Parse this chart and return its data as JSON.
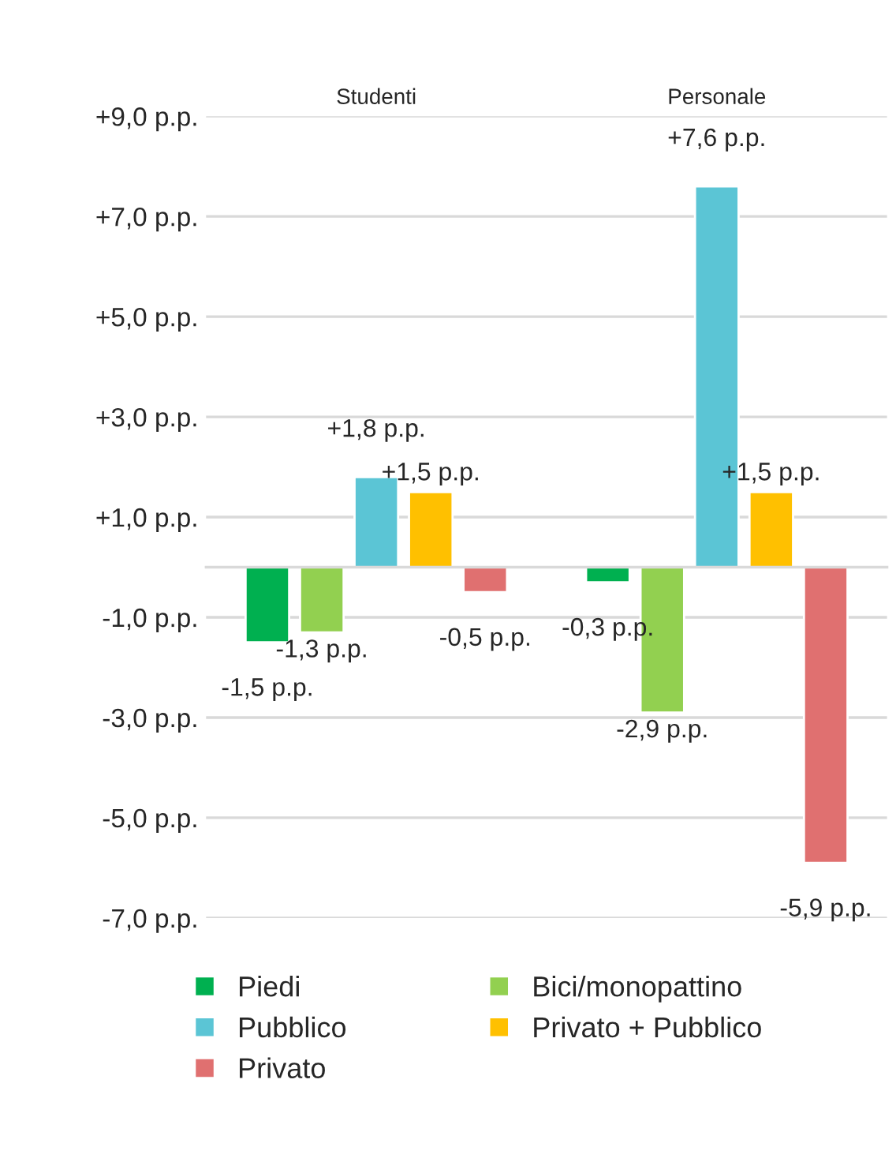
{
  "chart_data": {
    "type": "bar",
    "categories": [
      "Studenti",
      "Personale"
    ],
    "series": [
      {
        "name": "Piedi",
        "color": "#00b050",
        "values": [
          -1.5,
          -0.3
        ],
        "value_labels": [
          "-1,5 p.p.",
          "-0,3 p.p."
        ]
      },
      {
        "name": "Bici/monopattino",
        "color": "#92d050",
        "values": [
          -1.3,
          -2.9
        ],
        "value_labels": [
          "-1,3 p.p.",
          "-2,9 p.p."
        ]
      },
      {
        "name": "Pubblico",
        "color": "#5bc5d5",
        "values": [
          1.8,
          7.6
        ],
        "value_labels": [
          "+1,8 p.p.",
          "+7,6 p.p."
        ]
      },
      {
        "name": "Privato + Pubblico",
        "color": "#ffc000",
        "values": [
          1.5,
          1.5
        ],
        "value_labels": [
          "+1,5 p.p.",
          "+1,5 p.p."
        ]
      },
      {
        "name": "Privato",
        "color": "#e07070",
        "values": [
          -0.5,
          -5.9
        ],
        "value_labels": [
          "-0,5 p.p.",
          "-5,9 p.p."
        ]
      }
    ],
    "ylim": [
      -7,
      9
    ],
    "yticks": [
      {
        "value": -7,
        "label": "-7,0 p.p."
      },
      {
        "value": -5,
        "label": "-5,0 p.p."
      },
      {
        "value": -3,
        "label": "-3,0 p.p."
      },
      {
        "value": -1,
        "label": "-1,0 p.p."
      },
      {
        "value": 1,
        "label": "+1,0 p.p."
      },
      {
        "value": 3,
        "label": "+3,0 p.p."
      },
      {
        "value": 5,
        "label": "+5,0 p.p."
      },
      {
        "value": 7,
        "label": "+7,0 p.p."
      },
      {
        "value": 9,
        "label": "+9,0 p.p."
      }
    ],
    "grid": "y",
    "legend": "bottom"
  }
}
